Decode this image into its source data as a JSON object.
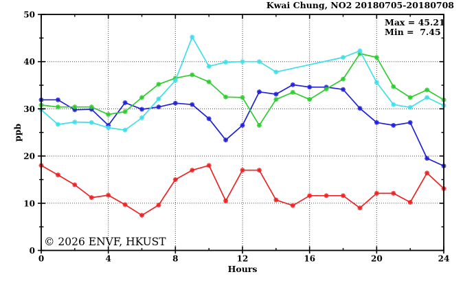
{
  "watermark": "© 2026 ENVF, HKUST",
  "chart_data": {
    "type": "line",
    "title": "Kwai Chung, NO2 20180705-20180708",
    "xlabel": "Hours",
    "ylabel": "ppb",
    "xlim": [
      0,
      24
    ],
    "ylim": [
      0,
      50
    ],
    "x_major_ticks": [
      0,
      4,
      8,
      12,
      16,
      20,
      24
    ],
    "x_minor_ticks": [
      2,
      6,
      10,
      14,
      18,
      22
    ],
    "y_major_ticks": [
      0,
      10,
      20,
      30,
      40,
      50
    ],
    "y_minor_ticks": [
      5,
      15,
      25,
      35,
      45
    ],
    "x_gridlines": [
      4,
      8,
      12,
      16,
      20
    ],
    "y_gridlines": [
      10,
      20,
      30,
      40
    ],
    "grid": "dotted",
    "legend": "none",
    "marker": "asterisk",
    "annotations": {
      "max": 45.21,
      "min": 7.45,
      "max_label": "Max = 45.21",
      "min_label": "Min =  7.45"
    },
    "series": [
      {
        "name": "series-red",
        "color": "#ee2222",
        "x": [
          0,
          1,
          2,
          3,
          4,
          5,
          6,
          7,
          8,
          9,
          10,
          11,
          12,
          13,
          14,
          15,
          16,
          17,
          18,
          19,
          20,
          21,
          22,
          23,
          24
        ],
        "values": [
          18.0,
          16.0,
          13.9,
          11.2,
          11.7,
          9.7,
          7.45,
          9.6,
          15.0,
          17.0,
          18.0,
          10.5,
          17.0,
          17.0,
          10.7,
          9.5,
          11.6,
          11.6,
          11.6,
          9.0,
          12.1,
          12.1,
          10.2,
          16.4,
          13.1
        ]
      },
      {
        "name": "series-blue",
        "color": "#2020d8",
        "x": [
          0,
          1,
          2,
          3,
          4,
          5,
          6,
          7,
          8,
          9,
          10,
          11,
          12,
          13,
          14,
          15,
          16,
          17,
          18,
          19,
          20,
          21,
          22,
          23,
          24
        ],
        "values": [
          31.9,
          31.9,
          29.8,
          29.9,
          26.5,
          31.3,
          29.9,
          30.4,
          31.2,
          30.9,
          27.9,
          23.4,
          26.5,
          33.6,
          33.1,
          35.1,
          34.6,
          34.6,
          34.1,
          30.1,
          27.1,
          26.5,
          27.1,
          19.5,
          17.9
        ]
      },
      {
        "name": "series-green",
        "color": "#2ecc2e",
        "x": [
          0,
          1,
          2,
          3,
          4,
          5,
          6,
          7,
          8,
          9,
          10,
          11,
          12,
          13,
          14,
          15,
          16,
          17,
          18,
          19,
          20,
          21,
          22,
          23,
          24
        ],
        "values": [
          30.8,
          30.4,
          30.4,
          30.4,
          28.8,
          29.4,
          32.4,
          35.2,
          36.5,
          37.2,
          35.7,
          32.5,
          32.4,
          26.5,
          32.0,
          33.5,
          32.0,
          34.2,
          36.3,
          41.7,
          40.9,
          34.7,
          32.4,
          34.0,
          31.9
        ]
      },
      {
        "name": "series-cyan",
        "color": "#3fdfe8",
        "x": [
          0,
          1,
          2,
          3,
          4,
          5,
          6,
          7,
          8,
          9,
          10,
          11,
          12,
          13,
          14,
          18,
          19,
          20,
          21,
          22,
          23,
          24
        ],
        "values": [
          29.8,
          26.7,
          27.2,
          27.1,
          26.0,
          25.5,
          28.1,
          32.1,
          36.0,
          45.21,
          39.0,
          39.9,
          40.0,
          40.0,
          37.8,
          40.9,
          42.3,
          35.6,
          30.9,
          30.3,
          32.4,
          30.7
        ]
      }
    ]
  }
}
